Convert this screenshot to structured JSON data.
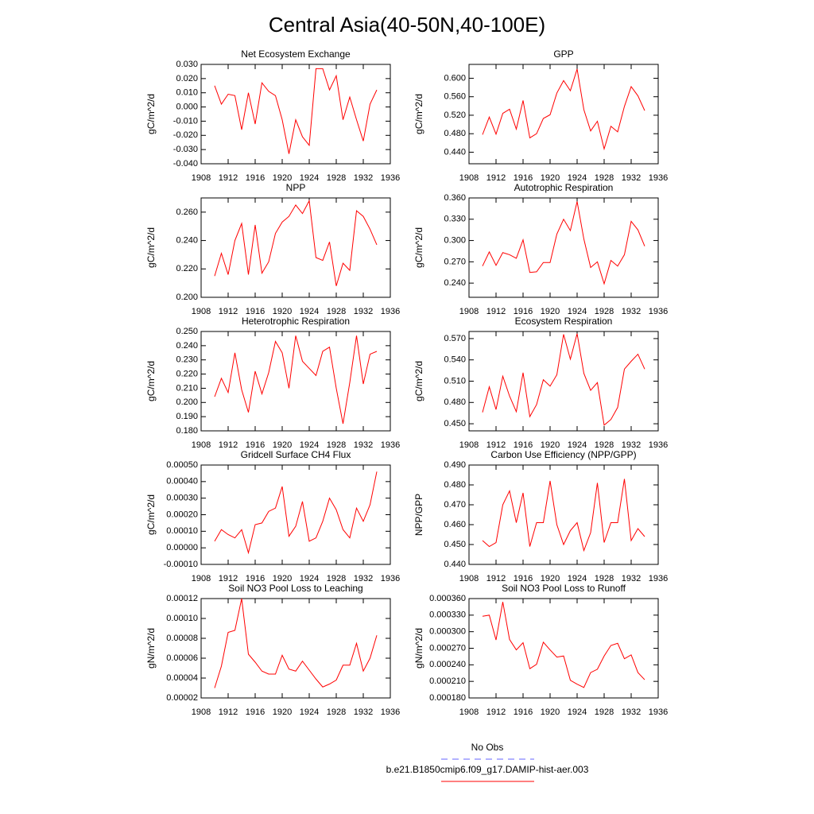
{
  "title": "Central Asia(40-50N,40-100E)",
  "legend": [
    {
      "name": "No Obs",
      "color": "#6666ff",
      "dashed": true
    },
    {
      "name": "b.e21.B1850cmip6.f09_g17.DAMIP-hist-aer.003",
      "color": "#ff0000",
      "dashed": false
    }
  ],
  "chart_data": [
    {
      "type": "line",
      "title": "Net Ecosystem Exchange",
      "y_label": "gC/m^2/d",
      "x": [
        1910,
        1911,
        1912,
        1913,
        1914,
        1915,
        1916,
        1917,
        1918,
        1919,
        1920,
        1921,
        1922,
        1923,
        1924,
        1925,
        1926,
        1927,
        1928,
        1929,
        1930,
        1931,
        1932,
        1933,
        1934
      ],
      "xlim": [
        1908,
        1936
      ],
      "xticks": [
        1908,
        1912,
        1916,
        1920,
        1924,
        1928,
        1932,
        1936
      ],
      "ylim": [
        -0.04,
        0.03
      ],
      "yticks": [
        {
          "value": -0.04,
          "label": "-0.040"
        },
        {
          "value": -0.03,
          "label": "-0.030"
        },
        {
          "value": -0.02,
          "label": "-0.020"
        },
        {
          "value": -0.01,
          "label": "-0.010"
        },
        {
          "value": 0,
          "label": "0.000"
        },
        {
          "value": 0.01,
          "label": "0.010"
        },
        {
          "value": 0.02,
          "label": "0.020"
        },
        {
          "value": 0.03,
          "label": "0.030"
        }
      ],
      "series": [
        {
          "color": "#ff0000",
          "values": [
            0.015,
            0.002,
            0.009,
            0.008,
            -0.016,
            0.01,
            -0.012,
            0.017,
            0.011,
            0.008,
            -0.009,
            -0.033,
            -0.009,
            -0.021,
            -0.027,
            0.027,
            0.027,
            0.012,
            0.022,
            -0.009,
            0.007,
            -0.009,
            -0.024,
            0.002,
            0.012
          ]
        }
      ]
    },
    {
      "type": "line",
      "title": "GPP",
      "y_label": "gC/m^2/d",
      "x": [
        1910,
        1911,
        1912,
        1913,
        1914,
        1915,
        1916,
        1917,
        1918,
        1919,
        1920,
        1921,
        1922,
        1923,
        1924,
        1925,
        1926,
        1927,
        1928,
        1929,
        1930,
        1931,
        1932,
        1933,
        1934
      ],
      "xlim": [
        1908,
        1936
      ],
      "xticks": [
        1908,
        1912,
        1916,
        1920,
        1924,
        1928,
        1932,
        1936
      ],
      "ylim": [
        0.415,
        0.63
      ],
      "yticks": [
        {
          "value": 0.44,
          "label": "0.440"
        },
        {
          "value": 0.48,
          "label": "0.480"
        },
        {
          "value": 0.52,
          "label": "0.520"
        },
        {
          "value": 0.56,
          "label": "0.560"
        },
        {
          "value": 0.6,
          "label": "0.600"
        }
      ],
      "series": [
        {
          "color": "#ff0000",
          "values": [
            0.478,
            0.516,
            0.479,
            0.524,
            0.533,
            0.49,
            0.552,
            0.471,
            0.48,
            0.513,
            0.521,
            0.568,
            0.595,
            0.573,
            0.62,
            0.532,
            0.486,
            0.507,
            0.447,
            0.496,
            0.484,
            0.539,
            0.582,
            0.562,
            0.53
          ]
        }
      ]
    },
    {
      "type": "line",
      "title": "NPP",
      "y_label": "gC/m^2/d",
      "x": [
        1910,
        1911,
        1912,
        1913,
        1914,
        1915,
        1916,
        1917,
        1918,
        1919,
        1920,
        1921,
        1922,
        1923,
        1924,
        1925,
        1926,
        1927,
        1928,
        1929,
        1930,
        1931,
        1932,
        1933,
        1934
      ],
      "xlim": [
        1908,
        1936
      ],
      "xticks": [
        1908,
        1912,
        1916,
        1920,
        1924,
        1928,
        1932,
        1936
      ],
      "ylim": [
        0.2,
        0.27
      ],
      "yticks": [
        {
          "value": 0.2,
          "label": "0.200"
        },
        {
          "value": 0.22,
          "label": "0.220"
        },
        {
          "value": 0.24,
          "label": "0.240"
        },
        {
          "value": 0.26,
          "label": "0.260"
        }
      ],
      "series": [
        {
          "color": "#ff0000",
          "values": [
            0.215,
            0.231,
            0.216,
            0.24,
            0.252,
            0.216,
            0.251,
            0.217,
            0.225,
            0.245,
            0.253,
            0.257,
            0.265,
            0.259,
            0.268,
            0.228,
            0.226,
            0.239,
            0.208,
            0.224,
            0.219,
            0.261,
            0.257,
            0.248,
            0.237
          ]
        }
      ]
    },
    {
      "type": "line",
      "title": "Autotrophic Respiration",
      "y_label": "gC/m^2/d",
      "x": [
        1910,
        1911,
        1912,
        1913,
        1914,
        1915,
        1916,
        1917,
        1918,
        1919,
        1920,
        1921,
        1922,
        1923,
        1924,
        1925,
        1926,
        1927,
        1928,
        1929,
        1930,
        1931,
        1932,
        1933,
        1934
      ],
      "xlim": [
        1908,
        1936
      ],
      "xticks": [
        1908,
        1912,
        1916,
        1920,
        1924,
        1928,
        1932,
        1936
      ],
      "ylim": [
        0.22,
        0.36
      ],
      "yticks": [
        {
          "value": 0.24,
          "label": "0.240"
        },
        {
          "value": 0.27,
          "label": "0.270"
        },
        {
          "value": 0.3,
          "label": "0.300"
        },
        {
          "value": 0.33,
          "label": "0.330"
        },
        {
          "value": 0.36,
          "label": "0.360"
        }
      ],
      "series": [
        {
          "color": "#ff0000",
          "values": [
            0.264,
            0.284,
            0.265,
            0.283,
            0.28,
            0.275,
            0.301,
            0.255,
            0.256,
            0.269,
            0.269,
            0.309,
            0.33,
            0.314,
            0.355,
            0.302,
            0.262,
            0.27,
            0.239,
            0.272,
            0.264,
            0.28,
            0.327,
            0.315,
            0.292
          ]
        }
      ]
    },
    {
      "type": "line",
      "title": "Heterotrophic Respiration",
      "y_label": "gC/m^2/d",
      "x": [
        1910,
        1911,
        1912,
        1913,
        1914,
        1915,
        1916,
        1917,
        1918,
        1919,
        1920,
        1921,
        1922,
        1923,
        1924,
        1925,
        1926,
        1927,
        1928,
        1929,
        1930,
        1931,
        1932,
        1933,
        1934
      ],
      "xlim": [
        1908,
        1936
      ],
      "xticks": [
        1908,
        1912,
        1916,
        1920,
        1924,
        1928,
        1932,
        1936
      ],
      "ylim": [
        0.18,
        0.25
      ],
      "yticks": [
        {
          "value": 0.18,
          "label": "0.180"
        },
        {
          "value": 0.19,
          "label": "0.190"
        },
        {
          "value": 0.2,
          "label": "0.200"
        },
        {
          "value": 0.21,
          "label": "0.210"
        },
        {
          "value": 0.22,
          "label": "0.220"
        },
        {
          "value": 0.23,
          "label": "0.230"
        },
        {
          "value": 0.24,
          "label": "0.240"
        },
        {
          "value": 0.25,
          "label": "0.250"
        }
      ],
      "series": [
        {
          "color": "#ff0000",
          "values": [
            0.204,
            0.217,
            0.207,
            0.235,
            0.209,
            0.193,
            0.222,
            0.206,
            0.221,
            0.243,
            0.235,
            0.21,
            0.247,
            0.229,
            0.224,
            0.219,
            0.236,
            0.239,
            0.21,
            0.185,
            0.214,
            0.247,
            0.213,
            0.234,
            0.236
          ]
        }
      ]
    },
    {
      "type": "line",
      "title": "Ecosystem Respiration",
      "y_label": "gC/m^2/d",
      "x": [
        1910,
        1911,
        1912,
        1913,
        1914,
        1915,
        1916,
        1917,
        1918,
        1919,
        1920,
        1921,
        1922,
        1923,
        1924,
        1925,
        1926,
        1927,
        1928,
        1929,
        1930,
        1931,
        1932,
        1933,
        1934
      ],
      "xlim": [
        1908,
        1936
      ],
      "xticks": [
        1908,
        1912,
        1916,
        1920,
        1924,
        1928,
        1932,
        1936
      ],
      "ylim": [
        0.44,
        0.58
      ],
      "yticks": [
        {
          "value": 0.45,
          "label": "0.450"
        },
        {
          "value": 0.48,
          "label": "0.480"
        },
        {
          "value": 0.51,
          "label": "0.510"
        },
        {
          "value": 0.54,
          "label": "0.540"
        },
        {
          "value": 0.57,
          "label": "0.570"
        }
      ],
      "series": [
        {
          "color": "#ff0000",
          "values": [
            0.466,
            0.502,
            0.47,
            0.517,
            0.489,
            0.467,
            0.522,
            0.46,
            0.477,
            0.512,
            0.503,
            0.519,
            0.576,
            0.541,
            0.577,
            0.521,
            0.497,
            0.508,
            0.448,
            0.456,
            0.473,
            0.527,
            0.538,
            0.548,
            0.527
          ]
        }
      ]
    },
    {
      "type": "line",
      "title": "Gridcell Surface CH4 Flux",
      "y_label": "gC/m^2/d",
      "x": [
        1910,
        1911,
        1912,
        1913,
        1914,
        1915,
        1916,
        1917,
        1918,
        1919,
        1920,
        1921,
        1922,
        1923,
        1924,
        1925,
        1926,
        1927,
        1928,
        1929,
        1930,
        1931,
        1932,
        1933,
        1934
      ],
      "xlim": [
        1908,
        1936
      ],
      "xticks": [
        1908,
        1912,
        1916,
        1920,
        1924,
        1928,
        1932,
        1936
      ],
      "ylim": [
        -0.0001,
        0.0005
      ],
      "yticks": [
        {
          "value": -0.0001,
          "label": "-0.00010"
        },
        {
          "value": 0,
          "label": "0.00000"
        },
        {
          "value": 0.0001,
          "label": "0.00010"
        },
        {
          "value": 0.0002,
          "label": "0.00020"
        },
        {
          "value": 0.0003,
          "label": "0.00030"
        },
        {
          "value": 0.0004,
          "label": "0.00040"
        },
        {
          "value": 0.0005,
          "label": "0.00050"
        }
      ],
      "series": [
        {
          "color": "#ff0000",
          "values": [
            4e-05,
            0.00011,
            8e-05,
            6e-05,
            0.00011,
            -3e-05,
            0.00014,
            0.00015,
            0.00022,
            0.00024,
            0.00037,
            7e-05,
            0.00013,
            0.00028,
            4e-05,
            6e-05,
            0.00016,
            0.0003,
            0.00023,
            0.00011,
            6e-05,
            0.00024,
            0.00016,
            0.00026,
            0.00046
          ]
        }
      ]
    },
    {
      "type": "line",
      "title": "Carbon Use Efficiency (NPP/GPP)",
      "y_label": "NPP/GPP",
      "x": [
        1910,
        1911,
        1912,
        1913,
        1914,
        1915,
        1916,
        1917,
        1918,
        1919,
        1920,
        1921,
        1922,
        1923,
        1924,
        1925,
        1926,
        1927,
        1928,
        1929,
        1930,
        1931,
        1932,
        1933,
        1934
      ],
      "xlim": [
        1908,
        1936
      ],
      "xticks": [
        1908,
        1912,
        1916,
        1920,
        1924,
        1928,
        1932,
        1936
      ],
      "ylim": [
        0.44,
        0.49
      ],
      "yticks": [
        {
          "value": 0.44,
          "label": "0.440"
        },
        {
          "value": 0.45,
          "label": "0.450"
        },
        {
          "value": 0.46,
          "label": "0.460"
        },
        {
          "value": 0.47,
          "label": "0.470"
        },
        {
          "value": 0.48,
          "label": "0.480"
        },
        {
          "value": 0.49,
          "label": "0.490"
        }
      ],
      "series": [
        {
          "color": "#ff0000",
          "values": [
            0.452,
            0.449,
            0.451,
            0.47,
            0.477,
            0.461,
            0.476,
            0.449,
            0.461,
            0.461,
            0.482,
            0.46,
            0.45,
            0.457,
            0.461,
            0.447,
            0.456,
            0.481,
            0.451,
            0.461,
            0.461,
            0.483,
            0.452,
            0.458,
            0.454
          ]
        }
      ]
    },
    {
      "type": "line",
      "title": "Soil NO3 Pool Loss to Leaching",
      "y_label": "gN/m^2/d",
      "x": [
        1910,
        1911,
        1912,
        1913,
        1914,
        1915,
        1916,
        1917,
        1918,
        1919,
        1920,
        1921,
        1922,
        1923,
        1924,
        1925,
        1926,
        1927,
        1928,
        1929,
        1930,
        1931,
        1932,
        1933,
        1934
      ],
      "xlim": [
        1908,
        1936
      ],
      "xticks": [
        1908,
        1912,
        1916,
        1920,
        1924,
        1928,
        1932,
        1936
      ],
      "ylim": [
        2e-05,
        0.00012
      ],
      "yticks": [
        {
          "value": 2e-05,
          "label": "0.00002"
        },
        {
          "value": 4e-05,
          "label": "0.00004"
        },
        {
          "value": 6e-05,
          "label": "0.00006"
        },
        {
          "value": 8e-05,
          "label": "0.00008"
        },
        {
          "value": 0.0001,
          "label": "0.00010"
        },
        {
          "value": 0.00012,
          "label": "0.00012"
        }
      ],
      "series": [
        {
          "color": "#ff0000",
          "values": [
            3e-05,
            5.2e-05,
            8.6e-05,
            8.8e-05,
            0.00012,
            6.4e-05,
            5.6e-05,
            4.7e-05,
            4.4e-05,
            4.4e-05,
            6.3e-05,
            4.9e-05,
            4.7e-05,
            5.7e-05,
            4.8e-05,
            3.9e-05,
            3.1e-05,
            3.4e-05,
            3.8e-05,
            5.3e-05,
            5.3e-05,
            7.5e-05,
            4.7e-05,
            6e-05,
            8.3e-05
          ]
        }
      ]
    },
    {
      "type": "line",
      "title": "Soil NO3 Pool Loss to Runoff",
      "y_label": "gN/m^2/d",
      "x": [
        1910,
        1911,
        1912,
        1913,
        1914,
        1915,
        1916,
        1917,
        1918,
        1919,
        1920,
        1921,
        1922,
        1923,
        1924,
        1925,
        1926,
        1927,
        1928,
        1929,
        1930,
        1931,
        1932,
        1933,
        1934
      ],
      "xlim": [
        1908,
        1936
      ],
      "xticks": [
        1908,
        1912,
        1916,
        1920,
        1924,
        1928,
        1932,
        1936
      ],
      "ylim": [
        0.00018,
        0.00036
      ],
      "yticks": [
        {
          "value": 0.00018,
          "label": "0.000180"
        },
        {
          "value": 0.00021,
          "label": "0.000210"
        },
        {
          "value": 0.00024,
          "label": "0.000240"
        },
        {
          "value": 0.00027,
          "label": "0.000270"
        },
        {
          "value": 0.0003,
          "label": "0.000300"
        },
        {
          "value": 0.00033,
          "label": "0.000330"
        },
        {
          "value": 0.00036,
          "label": "0.000360"
        }
      ],
      "series": [
        {
          "color": "#ff0000",
          "values": [
            0.000328,
            0.00033,
            0.000285,
            0.000354,
            0.000286,
            0.000267,
            0.00028,
            0.000233,
            0.000241,
            0.000281,
            0.000267,
            0.000254,
            0.000256,
            0.000212,
            0.000205,
            0.000199,
            0.000226,
            0.000232,
            0.000256,
            0.000275,
            0.000279,
            0.000251,
            0.000258,
            0.000226,
            0.000213
          ]
        }
      ]
    }
  ]
}
